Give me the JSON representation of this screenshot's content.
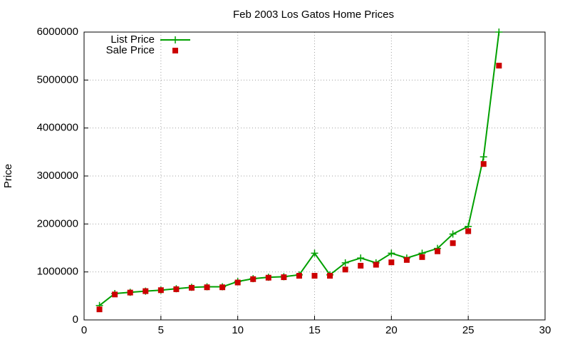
{
  "chart_data": {
    "type": "line",
    "title": "Feb 2003 Los Gatos Home Prices",
    "ylabel": "Price",
    "x": [
      1,
      2,
      3,
      4,
      5,
      6,
      7,
      8,
      9,
      10,
      11,
      12,
      13,
      14,
      15,
      16,
      17,
      18,
      19,
      20,
      21,
      22,
      23,
      24,
      25,
      26,
      27
    ],
    "series": [
      {
        "name": "List Price",
        "color": "#00a000",
        "style": "linespoints",
        "values": [
          300000,
          550000,
          575000,
          600000,
          620000,
          650000,
          680000,
          690000,
          690000,
          800000,
          860000,
          890000,
          900000,
          940000,
          1390000,
          940000,
          1190000,
          1290000,
          1190000,
          1390000,
          1290000,
          1390000,
          1490000,
          1790000,
          1950000,
          3400000,
          6000000
        ]
      },
      {
        "name": "Sale Price",
        "color": "#cc0000",
        "style": "points",
        "values": [
          220000,
          530000,
          570000,
          600000,
          620000,
          640000,
          670000,
          680000,
          680000,
          780000,
          850000,
          880000,
          890000,
          920000,
          920000,
          920000,
          1050000,
          1130000,
          1150000,
          1200000,
          1250000,
          1310000,
          1430000,
          1600000,
          1850000,
          3250000,
          5300000
        ]
      }
    ],
    "xlim": [
      0,
      30
    ],
    "xticks": [
      0,
      5,
      10,
      15,
      20,
      25,
      30
    ],
    "ylim": [
      0,
      6000000
    ],
    "yticks": [
      0,
      1000000,
      2000000,
      3000000,
      4000000,
      5000000,
      6000000
    ],
    "grid": true,
    "legend": "top-left"
  }
}
